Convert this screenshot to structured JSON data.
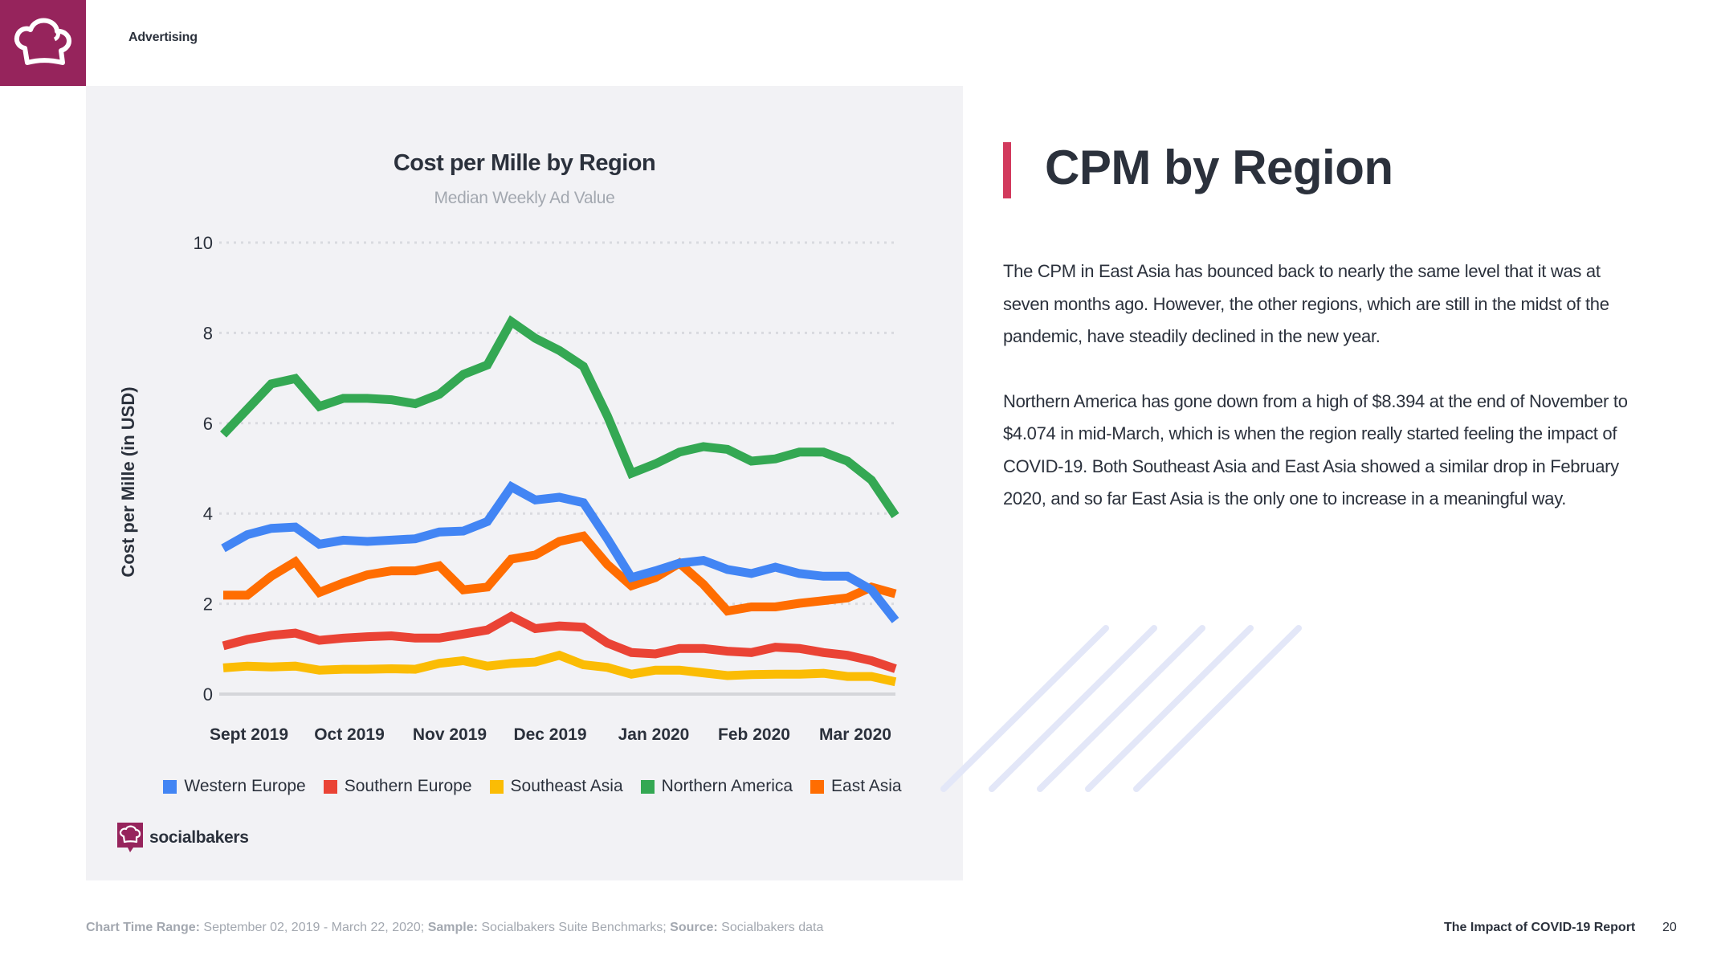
{
  "header": {
    "brand_icon": "chef-hat-icon",
    "section_label": "Advertising"
  },
  "colors": {
    "brand": "#96245c",
    "accent_bar": "#d23a5d",
    "western_europe": "#4285f4",
    "southern_europe": "#ea4335",
    "southeast_asia": "#fbbc04",
    "northern_america": "#34a853",
    "east_asia": "#ff6d01"
  },
  "chart_data": {
    "type": "line",
    "title": "Cost per Mille by Region",
    "subtitle": "Median Weekly Ad Value",
    "xlabel": "",
    "ylabel": "Cost per Mille (in USD)",
    "ylim": [
      0,
      10
    ],
    "yticks": [
      "0",
      "2",
      "4",
      "6",
      "8",
      "10"
    ],
    "grid": true,
    "x_tick_labels": [
      "Sept 2019",
      "Oct 2019",
      "Nov 2019",
      "Dec 2019",
      "Jan 2020",
      "Feb 2020",
      "Mar 2020"
    ],
    "x_points": 29,
    "legend_position": "bottom",
    "series": [
      {
        "name": "Western Europe",
        "color": "#4285f4",
        "values": [
          3.23,
          3.53,
          3.67,
          3.7,
          3.32,
          3.41,
          3.38,
          3.41,
          3.44,
          3.59,
          3.61,
          3.82,
          4.59,
          4.3,
          4.36,
          4.24,
          3.44,
          2.58,
          2.73,
          2.9,
          2.96,
          2.76,
          2.67,
          2.81,
          2.67,
          2.61,
          2.61,
          2.31,
          1.63
        ]
      },
      {
        "name": "Southern Europe",
        "color": "#ea4335",
        "values": [
          1.07,
          1.21,
          1.3,
          1.35,
          1.19,
          1.24,
          1.27,
          1.29,
          1.24,
          1.24,
          1.33,
          1.42,
          1.72,
          1.45,
          1.51,
          1.48,
          1.13,
          0.92,
          0.89,
          1.01,
          1.01,
          0.95,
          0.92,
          1.04,
          1.01,
          0.92,
          0.86,
          0.74,
          0.56
        ]
      },
      {
        "name": "Southeast Asia",
        "color": "#fbbc04",
        "values": [
          0.58,
          0.62,
          0.6,
          0.62,
          0.53,
          0.55,
          0.55,
          0.56,
          0.55,
          0.68,
          0.74,
          0.62,
          0.68,
          0.71,
          0.86,
          0.65,
          0.59,
          0.44,
          0.53,
          0.53,
          0.47,
          0.41,
          0.43,
          0.44,
          0.44,
          0.46,
          0.39,
          0.39,
          0.27
        ]
      },
      {
        "name": "Northern America",
        "color": "#34a853",
        "values": [
          5.75,
          6.31,
          6.87,
          6.99,
          6.37,
          6.55,
          6.55,
          6.52,
          6.43,
          6.64,
          7.08,
          7.29,
          8.25,
          7.88,
          7.61,
          7.26,
          6.16,
          4.89,
          5.1,
          5.36,
          5.48,
          5.42,
          5.16,
          5.21,
          5.36,
          5.36,
          5.16,
          4.74,
          3.95
        ]
      },
      {
        "name": "East Asia",
        "color": "#ff6d01",
        "values": [
          2.19,
          2.19,
          2.61,
          2.93,
          2.25,
          2.46,
          2.64,
          2.73,
          2.73,
          2.84,
          2.31,
          2.37,
          2.99,
          3.08,
          3.38,
          3.5,
          2.87,
          2.4,
          2.58,
          2.9,
          2.43,
          1.84,
          1.93,
          1.93,
          2.01,
          2.07,
          2.13,
          2.37,
          2.22
        ]
      }
    ]
  },
  "chart_logo": {
    "icon": "socialbakers-logo-icon",
    "text": "socialbakers"
  },
  "article": {
    "heading": "CPM by Region",
    "paragraphs": [
      "The CPM in East Asia has bounced back to nearly the same level that it was at seven months ago. However, the other regions, which are still in the midst of the pandemic, have steadily declined in the new year.",
      "Northern America has gone down from a high of $8.394 at the end of November to $4.074 in mid-March, which is when the region really started feeling the impact of COVID-19. Both Southeast Asia and East Asia showed a similar drop in February 2020, and so far East Asia is the only one to increase in a meaningful way."
    ]
  },
  "footer": {
    "time_range_label": "Chart Time Range:",
    "time_range_value": " September 02, 2019 - March 22, 2020; ",
    "sample_label": "Sample:",
    "sample_value": " Socialbakers Suite Benchmarks; ",
    "source_label": "Source:",
    "source_value": " Socialbakers data",
    "report_title": "The Impact of COVID-19 Report",
    "page_number": "20"
  }
}
